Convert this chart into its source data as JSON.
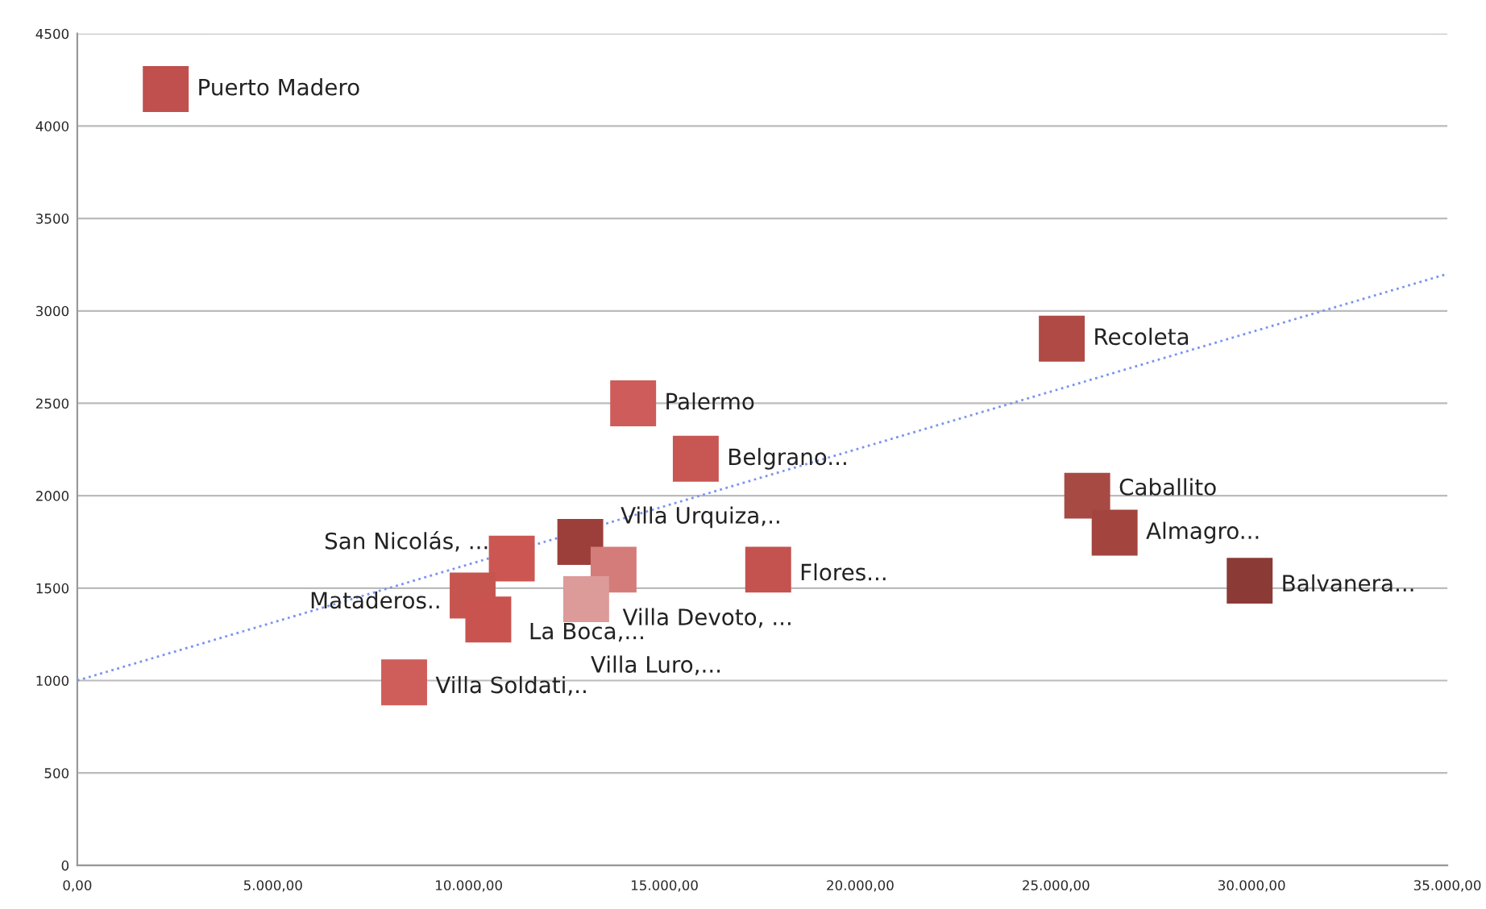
{
  "chart_data": {
    "type": "scatter",
    "grid": "y",
    "xlim": [
      0,
      35000
    ],
    "ylim": [
      0,
      4500
    ],
    "xticks": [
      {
        "value": 0,
        "label": "0,00"
      },
      {
        "value": 5000,
        "label": "5.000,00"
      },
      {
        "value": 10000,
        "label": "10.000,00"
      },
      {
        "value": 15000,
        "label": "15.000,00"
      },
      {
        "value": 20000,
        "label": "20.000,00"
      },
      {
        "value": 25000,
        "label": "25.000,00"
      },
      {
        "value": 30000,
        "label": "30.000,00"
      },
      {
        "value": 35000,
        "label": "35.000,00"
      }
    ],
    "yticks": [
      0,
      500,
      1000,
      1500,
      2000,
      2500,
      3000,
      3500,
      4000,
      4500
    ],
    "series": [
      {
        "marker": "square",
        "x": [
          2260,
          14200,
          15800,
          25150,
          25800,
          26500,
          29950,
          17650,
          12850,
          13700,
          13000,
          11100,
          10100,
          10500,
          8350
        ],
        "values": [
          4200,
          2500,
          2200,
          2850,
          2000,
          1800,
          1540,
          1600,
          1750,
          1600,
          1440,
          1660,
          1460,
          1330,
          990
        ],
        "colors": [
          "#c0504d",
          "#cd5c5a",
          "#c85652",
          "#b04a45",
          "#a84a44",
          "#a4443f",
          "#8b3a36",
          "#c4524e",
          "#9c3f3a",
          "#d47c79",
          "#dc9a98",
          "#cc5652",
          "#c65550",
          "#c9534f",
          "#cf5e5a"
        ]
      },
      {
        "type": "line",
        "x": [
          0,
          35000
        ],
        "values": [
          1000,
          3200
        ],
        "color": "#7b93f0",
        "line_style": "dotted"
      }
    ],
    "annotations": [
      {
        "text": "Puerto Madero",
        "x": 2260,
        "y": 4200
      },
      {
        "text": "Palermo",
        "x": 14200,
        "y": 2500
      },
      {
        "text": "Belgrano...",
        "x": 15800,
        "y": 2200
      },
      {
        "text": "Recoleta",
        "x": 25150,
        "y": 2850
      },
      {
        "text": "Caballito",
        "x": 25800,
        "y": 2000
      },
      {
        "text": "Almagro...",
        "x": 26500,
        "y": 1800
      },
      {
        "text": "Balvanera...",
        "x": 29950,
        "y": 1540
      },
      {
        "text": "Flores...",
        "x": 17650,
        "y": 1600
      },
      {
        "text": "Villa Urquiza,..",
        "x": 12850,
        "y": 1750
      },
      {
        "text": "Villa Devoto, ...",
        "x": 13700,
        "y": 1600
      },
      {
        "text": "Villa Luro,...",
        "x": 13000,
        "y": 1440
      },
      {
        "text": "San Nicolás, ...",
        "x": 11100,
        "y": 1660
      },
      {
        "text": "Mataderos..",
        "x": 10100,
        "y": 1460
      },
      {
        "text": "La Boca,...",
        "x": 10500,
        "y": 1330
      },
      {
        "text": "Villa Soldati,..",
        "x": 8350,
        "y": 990
      }
    ]
  }
}
